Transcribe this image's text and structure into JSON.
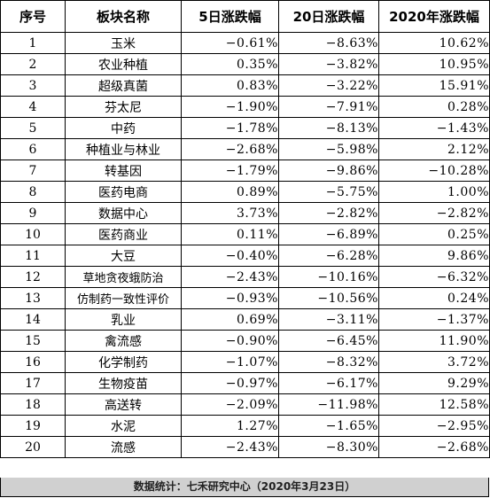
{
  "table": {
    "headers": [
      "序号",
      "板块名称",
      "5日涨跌幅",
      "20日涨跌幅",
      "2020年涨跌幅"
    ],
    "rows": [
      {
        "no": "1",
        "name": "玉米",
        "d5": "−0.61%",
        "d20": "−8.63%",
        "ytd": "10.62%"
      },
      {
        "no": "2",
        "name": "农业种植",
        "d5": "0.35%",
        "d20": "−3.82%",
        "ytd": "10.95%"
      },
      {
        "no": "3",
        "name": "超级真菌",
        "d5": "0.83%",
        "d20": "−3.22%",
        "ytd": "15.91%"
      },
      {
        "no": "4",
        "name": "芬太尼",
        "d5": "−1.90%",
        "d20": "−7.91%",
        "ytd": "0.28%"
      },
      {
        "no": "5",
        "name": "中药",
        "d5": "−1.78%",
        "d20": "−8.13%",
        "ytd": "−1.43%"
      },
      {
        "no": "6",
        "name": "种植业与林业",
        "d5": "−2.68%",
        "d20": "−5.98%",
        "ytd": "2.12%"
      },
      {
        "no": "7",
        "name": "转基因",
        "d5": "−1.79%",
        "d20": "−9.86%",
        "ytd": "−10.28%"
      },
      {
        "no": "8",
        "name": "医药电商",
        "d5": "0.89%",
        "d20": "−5.75%",
        "ytd": "1.00%"
      },
      {
        "no": "9",
        "name": "数据中心",
        "d5": "3.73%",
        "d20": "−2.82%",
        "ytd": "−2.82%"
      },
      {
        "no": "10",
        "name": "医药商业",
        "d5": "0.11%",
        "d20": "−6.89%",
        "ytd": "0.25%"
      },
      {
        "no": "11",
        "name": "大豆",
        "d5": "−0.40%",
        "d20": "−6.28%",
        "ytd": "9.86%"
      },
      {
        "no": "12",
        "name": "草地贪夜蛾防治",
        "d5": "−2.43%",
        "d20": "−10.16%",
        "ytd": "−6.32%"
      },
      {
        "no": "13",
        "name": "仿制药一致性评价",
        "d5": "−0.93%",
        "d20": "−10.56%",
        "ytd": "0.24%"
      },
      {
        "no": "14",
        "name": "乳业",
        "d5": "0.69%",
        "d20": "−3.11%",
        "ytd": "−1.37%"
      },
      {
        "no": "15",
        "name": "禽流感",
        "d5": "−0.90%",
        "d20": "−6.45%",
        "ytd": "11.90%"
      },
      {
        "no": "16",
        "name": "化学制药",
        "d5": "−1.07%",
        "d20": "−8.32%",
        "ytd": "3.72%"
      },
      {
        "no": "17",
        "name": "生物疫苗",
        "d5": "−0.97%",
        "d20": "−6.17%",
        "ytd": "9.29%"
      },
      {
        "no": "18",
        "name": "高送转",
        "d5": "−2.09%",
        "d20": "−11.98%",
        "ytd": "12.58%"
      },
      {
        "no": "19",
        "name": "水泥",
        "d5": "1.27%",
        "d20": "−1.65%",
        "ytd": "−2.95%"
      },
      {
        "no": "20",
        "name": "流感",
        "d5": "−2.43%",
        "d20": "−8.30%",
        "ytd": "−2.68%"
      }
    ]
  },
  "footer": {
    "text": "数据统计：七禾研究中心（2020年3月23日）"
  },
  "colors": {
    "border": "#000000",
    "footer_background": "#d0d0d0",
    "text": "#000000"
  }
}
